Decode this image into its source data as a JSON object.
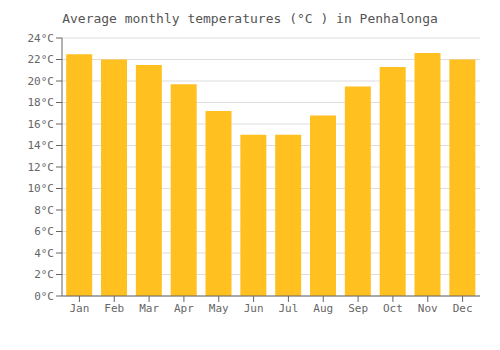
{
  "chart_data": {
    "type": "bar",
    "title": "Average monthly temperatures (°C ) in Penhalonga",
    "categories": [
      "Jan",
      "Feb",
      "Mar",
      "Apr",
      "May",
      "Jun",
      "Jul",
      "Aug",
      "Sep",
      "Oct",
      "Nov",
      "Dec"
    ],
    "values": [
      22.5,
      22.0,
      21.5,
      19.7,
      17.2,
      15.0,
      15.0,
      16.8,
      19.5,
      21.3,
      22.6,
      22.0
    ],
    "color": "#FFC020",
    "ylim": [
      0,
      24
    ],
    "yticks": [
      {
        "value": 0,
        "label": "0°C"
      },
      {
        "value": 2,
        "label": "2°C"
      },
      {
        "value": 4,
        "label": "4°C"
      },
      {
        "value": 6,
        "label": "6°C"
      },
      {
        "value": 8,
        "label": "8°C"
      },
      {
        "value": 10,
        "label": "10°C"
      },
      {
        "value": 12,
        "label": "12°C"
      },
      {
        "value": 14,
        "label": "14°C"
      },
      {
        "value": 16,
        "label": "16°C"
      },
      {
        "value": 18,
        "label": "18°C"
      },
      {
        "value": 20,
        "label": "20°C"
      },
      {
        "value": 22,
        "label": "22°C"
      },
      {
        "value": 24,
        "label": "24°C"
      }
    ],
    "grid": true
  }
}
